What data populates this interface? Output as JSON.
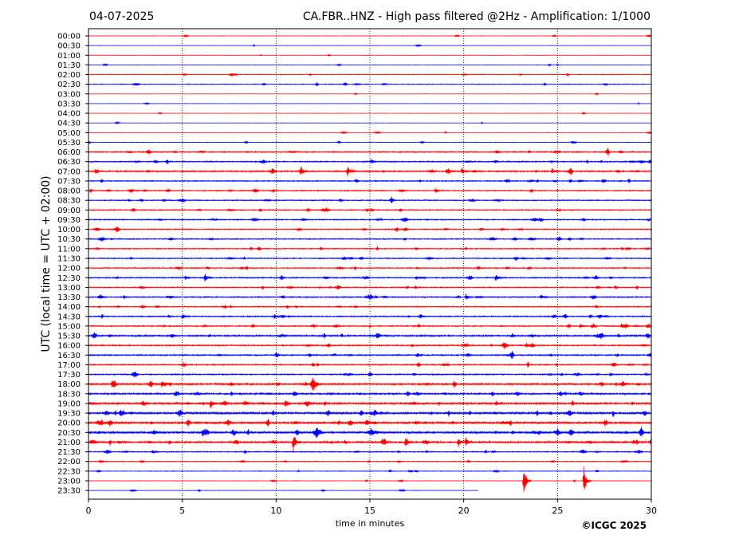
{
  "header": {
    "date": "04-07-2025",
    "title": "CA.FBR..HNZ - High pass filtered @2Hz - Amplification: 1/1000"
  },
  "footer": {
    "copyright": "©ICGC 2025"
  },
  "colors": {
    "even_trace": "#ff0000",
    "odd_trace": "#0000ff",
    "grid": "#000000",
    "background": "#ffffff"
  },
  "chart_data": {
    "type": "line",
    "subtype": "helicorder",
    "xlabel": "time in minutes",
    "ylabel": "UTC (local time = UTC + 02:00)",
    "xlim": [
      0,
      30
    ],
    "x_ticks": [
      "0",
      "5",
      "10",
      "15",
      "20",
      "25",
      "30"
    ],
    "x_tick_values": [
      0,
      5,
      10,
      15,
      20,
      25,
      30
    ],
    "vertical_gridlines_at": [
      5,
      10,
      15,
      20,
      25
    ],
    "row_labels": [
      "00:00",
      "00:30",
      "01:00",
      "01:30",
      "02:00",
      "02:30",
      "03:00",
      "03:30",
      "04:00",
      "04:30",
      "05:00",
      "05:30",
      "06:00",
      "06:30",
      "07:00",
      "07:30",
      "08:00",
      "08:30",
      "09:00",
      "09:30",
      "10:00",
      "10:30",
      "11:00",
      "11:30",
      "12:00",
      "12:30",
      "13:00",
      "13:30",
      "14:00",
      "14:30",
      "15:00",
      "15:30",
      "16:00",
      "16:30",
      "17:00",
      "17:30",
      "18:00",
      "18:30",
      "19:00",
      "19:30",
      "20:00",
      "20:30",
      "21:00",
      "21:30",
      "22:00",
      "22:30",
      "23:00",
      "23:30"
    ],
    "trace_color_cycle": [
      "red",
      "blue"
    ],
    "last_row_end_minute": 20.8,
    "noise_levels": [
      0.3,
      0.2,
      0.2,
      0.3,
      0.5,
      0.6,
      0.2,
      0.2,
      0.2,
      0.2,
      0.3,
      0.4,
      0.9,
      0.9,
      1.1,
      0.8,
      0.8,
      0.8,
      0.8,
      0.8,
      0.8,
      0.8,
      0.8,
      0.8,
      0.8,
      0.9,
      0.8,
      0.9,
      0.8,
      0.9,
      0.9,
      1.2,
      1.0,
      1.0,
      0.9,
      0.9,
      1.3,
      1.2,
      1.4,
      1.5,
      1.5,
      1.5,
      1.3,
      0.8,
      0.6,
      0.5,
      0.3,
      0.3
    ],
    "events": [
      {
        "row": "06:30",
        "minute": 15.05,
        "amplitude": 4
      },
      {
        "row": "07:00",
        "minute": 11.3,
        "amplitude": 5
      },
      {
        "row": "07:00",
        "minute": 13.8,
        "amplitude": 7
      },
      {
        "row": "07:00",
        "minute": 19.9,
        "amplitude": 4
      },
      {
        "row": "07:00",
        "minute": 24.7,
        "amplitude": 4
      },
      {
        "row": "08:00",
        "minute": 18.5,
        "amplitude": 3
      },
      {
        "row": "12:30",
        "minute": 6.2,
        "amplitude": 6
      },
      {
        "row": "12:30",
        "minute": 21.7,
        "amplitude": 5
      },
      {
        "row": "13:30",
        "minute": 20.1,
        "amplitude": 5
      },
      {
        "row": "13:30",
        "minute": 24.1,
        "amplitude": 4
      },
      {
        "row": "14:30",
        "minute": 5.0,
        "amplitude": 4
      },
      {
        "row": "14:30",
        "minute": 9.9,
        "amplitude": 3
      },
      {
        "row": "15:00",
        "minute": 26.2,
        "amplitude": 3
      },
      {
        "row": "15:00",
        "minute": 28.4,
        "amplitude": 3
      },
      {
        "row": "16:30",
        "minute": 17.5,
        "amplitude": 4
      },
      {
        "row": "18:00",
        "minute": 1.25,
        "amplitude": 6
      },
      {
        "row": "18:00",
        "minute": 3.3,
        "amplitude": 4
      },
      {
        "row": "18:00",
        "minute": 3.9,
        "amplitude": 4
      },
      {
        "row": "19:00",
        "minute": 6.5,
        "amplitude": 6
      },
      {
        "row": "19:00",
        "minute": 21.7,
        "amplitude": 3
      },
      {
        "row": "20:30",
        "minute": 24.0,
        "amplitude": 3
      },
      {
        "row": "21:00",
        "minute": 10.9,
        "amplitude": 16
      },
      {
        "row": "21:00",
        "minute": 16.9,
        "amplitude": 10
      },
      {
        "row": "21:00",
        "minute": 19.7,
        "amplitude": 7
      },
      {
        "row": "21:00",
        "minute": 20.1,
        "amplitude": 7
      },
      {
        "row": "21:30",
        "minute": 3.4,
        "amplitude": 3
      },
      {
        "row": "22:00",
        "minute": 0.6,
        "amplitude": 3
      },
      {
        "row": "23:00",
        "minute": 23.2,
        "amplitude": 22
      },
      {
        "row": "23:00",
        "minute": 26.4,
        "amplitude": 20
      }
    ]
  }
}
